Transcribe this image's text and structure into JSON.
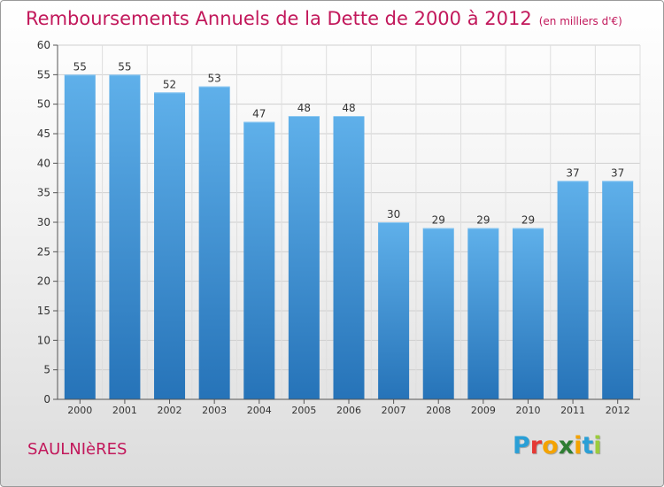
{
  "title": "Remboursements Annuels de la Dette de 2000 à 2012",
  "unit": "(en milliers d'€)",
  "commune": "SAULNIèRES",
  "brand": {
    "letters": [
      "P",
      "r",
      "o",
      "x",
      "i",
      "t",
      "i"
    ],
    "colors": [
      "#2a9fd6",
      "#e53935",
      "#f4a300",
      "#2e7d32",
      "#f4a300",
      "#2a9fd6",
      "#9ccc3c"
    ]
  },
  "colors": {
    "accent": "#c2185b",
    "bar_top": "#5fb0ea",
    "bar_bottom": "#2673b8"
  },
  "chart_data": {
    "type": "bar",
    "categories": [
      "2000",
      "2001",
      "2002",
      "2003",
      "2004",
      "2005",
      "2006",
      "2007",
      "2008",
      "2009",
      "2010",
      "2011",
      "2012"
    ],
    "values": [
      55,
      55,
      52,
      53,
      47,
      48,
      48,
      30,
      29,
      29,
      29,
      37,
      37
    ],
    "ylim": [
      0,
      60
    ],
    "yticks": [
      0,
      5,
      10,
      15,
      20,
      25,
      30,
      35,
      40,
      45,
      50,
      55,
      60
    ],
    "grid": true
  }
}
